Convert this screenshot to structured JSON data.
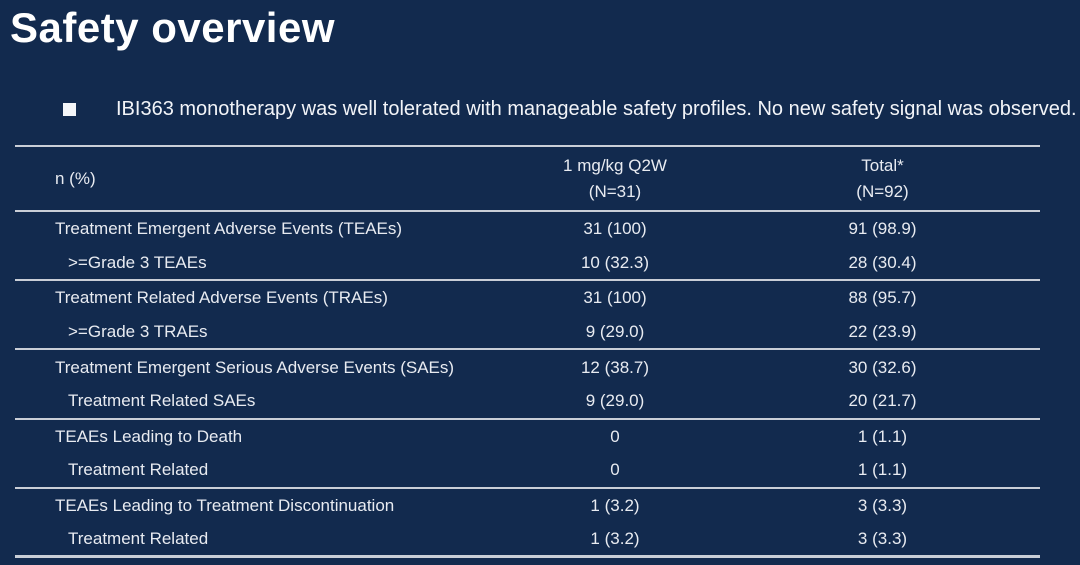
{
  "slide": {
    "title": "Safety overview",
    "bullet": "IBI363 monotherapy was well tolerated with manageable safety profiles. No new safety signal was observed."
  },
  "table": {
    "header": {
      "label": "n (%)",
      "col1_line1": "1 mg/kg Q2W",
      "col1_line2": "(N=31)",
      "col2_line1": "Total*",
      "col2_line2": "(N=92)"
    },
    "rows": [
      {
        "label": "Treatment Emergent Adverse Events (TEAEs)",
        "indent": false,
        "values": [
          "31 (100)",
          "91 (98.9)"
        ]
      },
      {
        "label": ">=Grade 3 TEAEs",
        "indent": true,
        "values": [
          "10 (32.3)",
          "28 (30.4)"
        ]
      },
      {
        "label": "Treatment Related Adverse Events (TRAEs)",
        "indent": false,
        "values": [
          "31 (100)",
          "88 (95.7)"
        ]
      },
      {
        "label": ">=Grade 3 TRAEs",
        "indent": true,
        "values": [
          "9 (29.0)",
          "22 (23.9)"
        ]
      },
      {
        "label": "Treatment Emergent Serious Adverse Events (SAEs)",
        "indent": false,
        "values": [
          "12 (38.7)",
          "30 (32.6)"
        ]
      },
      {
        "label": "Treatment Related SAEs",
        "indent": true,
        "values": [
          "9 (29.0)",
          "20 (21.7)"
        ]
      },
      {
        "label": "TEAEs Leading to Death",
        "indent": false,
        "values": [
          "0",
          "1 (1.1)"
        ]
      },
      {
        "label": "Treatment Related",
        "indent": true,
        "values": [
          "0",
          "1 (1.1)"
        ]
      },
      {
        "label": "TEAEs Leading to Treatment Discontinuation",
        "indent": false,
        "values": [
          "1 (3.2)",
          "3 (3.3)"
        ]
      },
      {
        "label": "Treatment Related",
        "indent": true,
        "values": [
          "1 (3.2)",
          "3 (3.3)"
        ]
      }
    ]
  },
  "colors": {
    "background": "#122a4e",
    "title_text": "#ffffff",
    "bullet_text": "#f2f4f8",
    "table_text": "#e8ebf1",
    "line": "#c9ced7"
  }
}
